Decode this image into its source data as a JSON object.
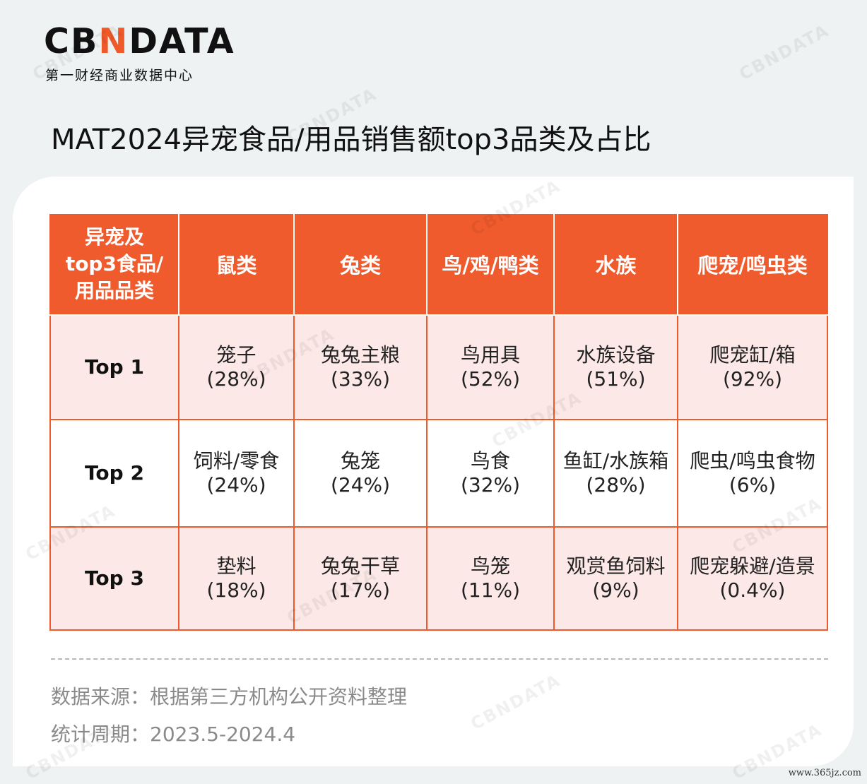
{
  "logo": {
    "part1": "CB",
    "part2": "N",
    "part3": "DATA",
    "subtitle": "第一财经商业数据中心"
  },
  "title": "MAT2024异宠食品/用品销售额top3品类及占比",
  "table": {
    "corner": [
      "异宠及",
      "top3食品/",
      "用品品类"
    ],
    "columns": [
      "鼠类",
      "兔类",
      "鸟/鸡/鸭类",
      "水族",
      "爬宠/鸣虫类"
    ],
    "rows": [
      {
        "label": "Top 1",
        "cells": [
          {
            "name": "笼子",
            "pct": "(28%)"
          },
          {
            "name": "兔兔主粮",
            "pct": "(33%)"
          },
          {
            "name": "鸟用具",
            "pct": "(52%)"
          },
          {
            "name": "水族设备",
            "pct": "(51%)"
          },
          {
            "name": "爬宠缸/箱",
            "pct": "(92%)"
          }
        ]
      },
      {
        "label": "Top 2",
        "cells": [
          {
            "name": "饲料/零食",
            "pct": "(24%)"
          },
          {
            "name": "兔笼",
            "pct": "(24%)"
          },
          {
            "name": "鸟食",
            "pct": "(32%)"
          },
          {
            "name": "鱼缸/水族箱",
            "pct": "(28%)"
          },
          {
            "name": "爬虫/鸣虫食物",
            "pct": "(6%)"
          }
        ]
      },
      {
        "label": "Top 3",
        "cells": [
          {
            "name": "垫料",
            "pct": "(18%)"
          },
          {
            "name": "兔兔干草",
            "pct": "(17%)"
          },
          {
            "name": "鸟笼",
            "pct": "(11%)"
          },
          {
            "name": "观赏鱼饲料",
            "pct": "(9%)"
          },
          {
            "name": "爬宠躲避/造景",
            "pct": "(0.4%)"
          }
        ]
      }
    ]
  },
  "source": "数据来源：根据第三方机构公开资料整理",
  "period": "统计周期：2023.5-2024.4",
  "site": "www.365jz.com",
  "colors": {
    "accent": "#f05b2d",
    "row_tint": "#fce9e7",
    "background": "#eef2f2"
  }
}
